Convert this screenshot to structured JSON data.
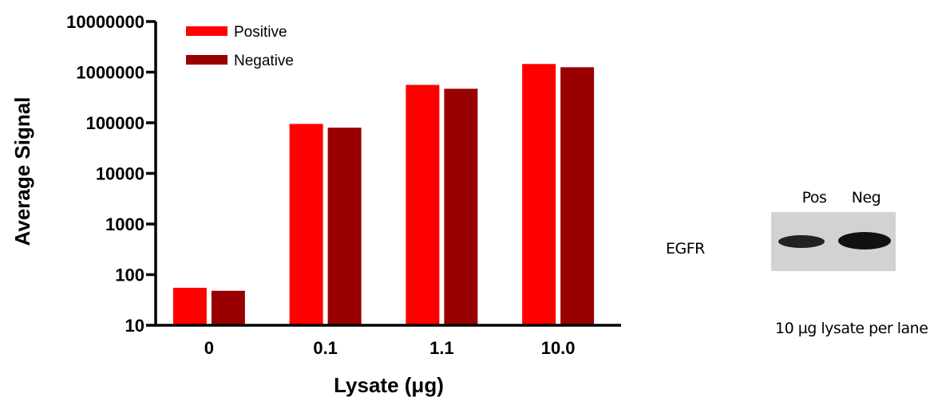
{
  "chart_data": {
    "type": "bar",
    "title": "",
    "xlabel": "Lysate (μg)",
    "ylabel": "Average Signal",
    "yscale": "log",
    "ylim": [
      10,
      10000000
    ],
    "yticks": [
      "10",
      "100",
      "1000",
      "10000",
      "100000",
      "1000000",
      "10000000"
    ],
    "categories": [
      "0",
      "0.1",
      "1.1",
      "10.0"
    ],
    "series": [
      {
        "name": "Positive",
        "color": "#ff0000",
        "values": [
          55,
          95000,
          560000,
          1450000
        ]
      },
      {
        "name": "Negative",
        "color": "#990000",
        "values": [
          48,
          80000,
          470000,
          1250000
        ]
      }
    ],
    "legend_position": "top-left",
    "grid": false
  },
  "blot": {
    "lanes": [
      "Pos",
      "Neg"
    ],
    "target": "EGFR",
    "caption": "10 µg lysate per lane"
  }
}
